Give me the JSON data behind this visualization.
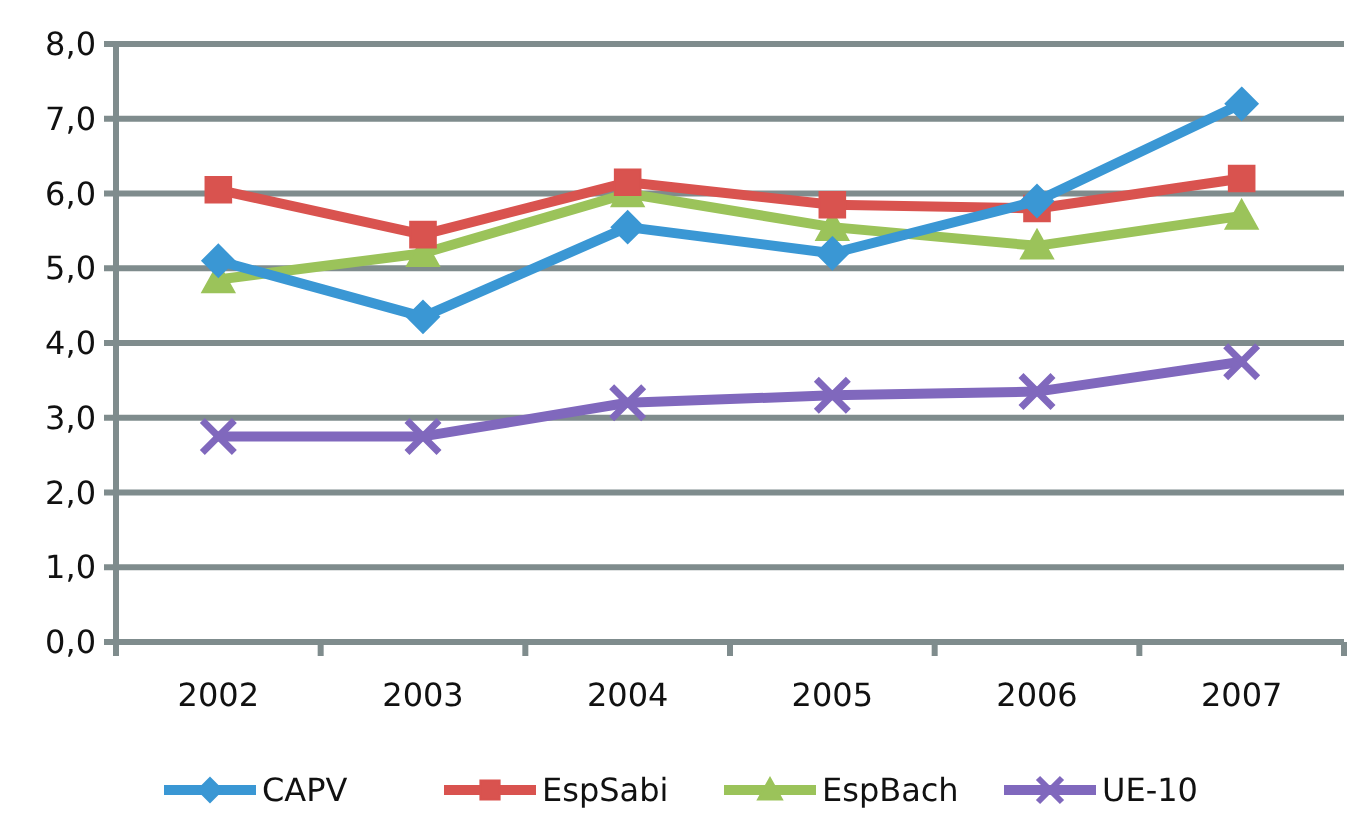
{
  "chart_data": {
    "type": "line",
    "categories": [
      "2002",
      "2003",
      "2004",
      "2005",
      "2006",
      "2007"
    ],
    "series": [
      {
        "name": "CAPV",
        "color": "#3a97d4",
        "marker": "diamond",
        "values": [
          5.1,
          4.35,
          5.55,
          5.2,
          5.9,
          7.2
        ]
      },
      {
        "name": "EspSabi",
        "color": "#d9534f",
        "marker": "square",
        "values": [
          6.05,
          5.45,
          6.15,
          5.85,
          5.8,
          6.2
        ]
      },
      {
        "name": "EspBach",
        "color": "#9bc35a",
        "marker": "triangle",
        "values": [
          4.85,
          5.2,
          6.0,
          5.55,
          5.3,
          5.7
        ]
      },
      {
        "name": "UE-10",
        "color": "#8068bd",
        "marker": "cross",
        "values": [
          2.75,
          2.75,
          3.2,
          3.3,
          3.35,
          3.75
        ]
      }
    ],
    "ylim": [
      0,
      8
    ],
    "yticks": [
      {
        "value": 0,
        "label": "0,0"
      },
      {
        "value": 1,
        "label": "1,0"
      },
      {
        "value": 2,
        "label": "2,0"
      },
      {
        "value": 3,
        "label": "3,0"
      },
      {
        "value": 4,
        "label": "4,0"
      },
      {
        "value": 5,
        "label": "5,0"
      },
      {
        "value": 6,
        "label": "6,0"
      },
      {
        "value": 7,
        "label": "7,0"
      },
      {
        "value": 8,
        "label": "8,0"
      }
    ],
    "grid": "y",
    "legend": "bottom"
  }
}
